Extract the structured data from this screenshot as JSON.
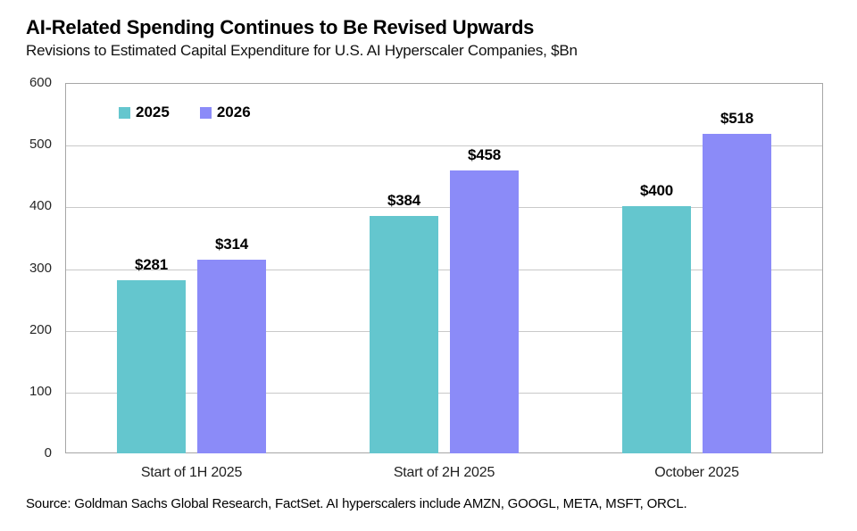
{
  "header": {
    "title": "AI-Related Spending Continues to Be Revised Upwards",
    "subtitle": "Revisions to Estimated Capital Expenditure for U.S. AI Hyperscaler Companies, $Bn"
  },
  "chart_data": {
    "type": "bar",
    "title": "AI-Related Spending Continues to Be Revised Upwards",
    "subtitle": "Revisions to Estimated Capital Expenditure for U.S. AI Hyperscaler Companies, $Bn",
    "categories": [
      "Start of 1H 2025",
      "Start of 2H 2025",
      "October 2025"
    ],
    "series": [
      {
        "name": "2025",
        "color": "#64C6CE",
        "values": [
          281,
          384,
          400
        ],
        "labels": [
          "$281",
          "$384",
          "$400"
        ]
      },
      {
        "name": "2026",
        "color": "#8B8BF8",
        "values": [
          314,
          458,
          518
        ],
        "labels": [
          "$314",
          "$458",
          "$518"
        ]
      }
    ],
    "ylim": [
      0,
      600
    ],
    "yticks": [
      0,
      100,
      200,
      300,
      400,
      500,
      600
    ],
    "grid": "horizontal",
    "legend_position": "top-left-inside"
  },
  "footer": {
    "source": "Source: Goldman Sachs Global Research, FactSet. AI hyperscalers include AMZN, GOOGL, META, MSFT, ORCL."
  }
}
